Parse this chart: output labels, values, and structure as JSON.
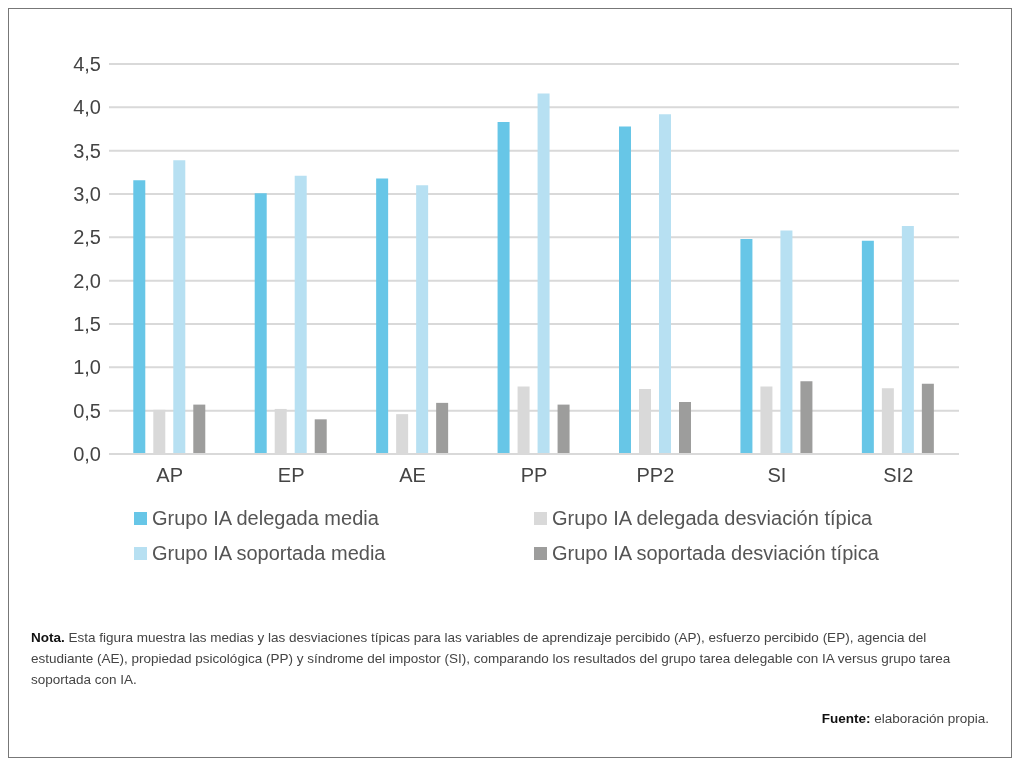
{
  "chart_data": {
    "type": "bar",
    "categories": [
      "AP",
      "EP",
      "AE",
      "PP",
      "PP2",
      "SI",
      "SI2"
    ],
    "series": [
      {
        "name": "Grupo IA delegada media",
        "color": "#67c6e7",
        "values": [
          3.16,
          3.01,
          3.18,
          3.83,
          3.78,
          2.48,
          2.46
        ]
      },
      {
        "name": "Grupo IA delegada desviación típica",
        "color": "#d9d9d9",
        "values": [
          0.51,
          0.52,
          0.46,
          0.78,
          0.75,
          0.78,
          0.76
        ]
      },
      {
        "name": "Grupo IA soportada media",
        "color": "#b7e0f2",
        "values": [
          3.39,
          3.21,
          3.1,
          4.16,
          3.92,
          2.58,
          2.63
        ]
      },
      {
        "name": "Grupo IA soportada desviación típica",
        "color": "#9d9d9c",
        "values": [
          0.57,
          0.4,
          0.59,
          0.57,
          0.6,
          0.84,
          0.81
        ]
      }
    ],
    "ylim": [
      0,
      4.5
    ],
    "yticks": [
      {
        "value": 0,
        "label": "0,0"
      },
      {
        "value": 0.5,
        "label": "0,5"
      },
      {
        "value": 1,
        "label": "1,0"
      },
      {
        "value": 1.5,
        "label": "1,5"
      },
      {
        "value": 2,
        "label": "2,0"
      },
      {
        "value": 2.5,
        "label": "2,5"
      },
      {
        "value": 3,
        "label": "3,0"
      },
      {
        "value": 3.5,
        "label": "3,5"
      },
      {
        "value": 4,
        "label": "4,0"
      },
      {
        "value": 4.5,
        "label": "4,5"
      }
    ],
    "grid": "y",
    "legend": "bottom",
    "annotations": [
      "Nota. Esta figura muestra las medias y las desviaciones típicas para las variables de aprendizaje percibido (AP), esfuerzo percibido (EP), agencia del estudiante (AE), propiedad psicológica (PP) y síndrome del impostor (SI), comparando los resultados del grupo tarea delegable con IA versus grupo tarea soportada con IA.",
      "Fuente: elaboración propia."
    ]
  }
}
